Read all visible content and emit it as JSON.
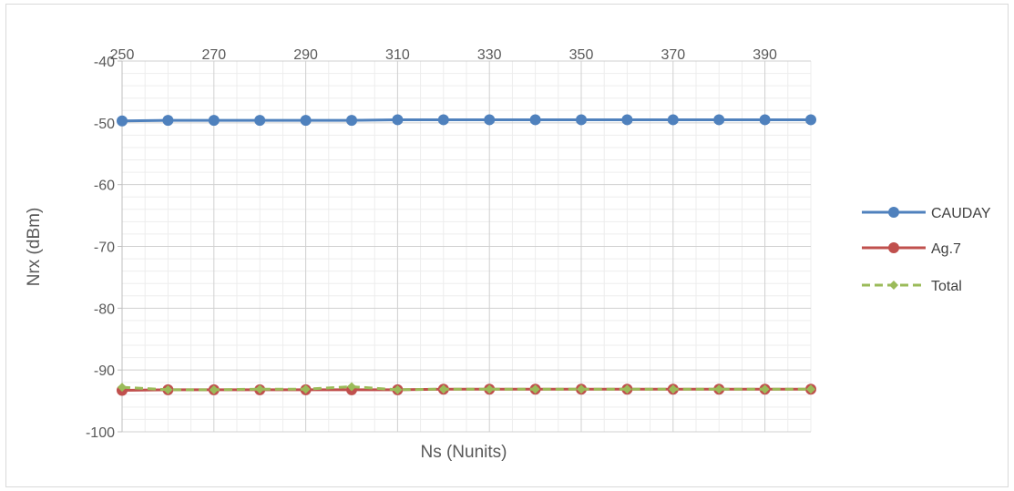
{
  "chart_data": {
    "type": "line",
    "title": "",
    "xlabel": "Ns (Nunits)",
    "ylabel": "Nrx (dBm)",
    "xlim": [
      250,
      400
    ],
    "ylim": [
      -100,
      -40
    ],
    "x_ticks": [
      250,
      270,
      290,
      310,
      330,
      350,
      370,
      390
    ],
    "y_ticks": [
      -40,
      -50,
      -60,
      -70,
      -80,
      -90,
      -100
    ],
    "grid": true,
    "legend_position": "right",
    "x": [
      250,
      260,
      270,
      280,
      290,
      300,
      310,
      320,
      330,
      340,
      350,
      360,
      370,
      380,
      390,
      400
    ],
    "series": [
      {
        "name": "CAUDAY",
        "color": "#4f81bd",
        "marker": "circle",
        "style": "solid",
        "values": [
          -49.7,
          -49.6,
          -49.6,
          -49.6,
          -49.6,
          -49.6,
          -49.5,
          -49.5,
          -49.5,
          -49.5,
          -49.5,
          -49.5,
          -49.5,
          -49.5,
          -49.5,
          -49.5
        ]
      },
      {
        "name": "Ag.7",
        "color": "#c0504d",
        "marker": "circle",
        "style": "solid",
        "values": [
          -93.3,
          -93.2,
          -93.2,
          -93.2,
          -93.2,
          -93.2,
          -93.2,
          -93.1,
          -93.1,
          -93.1,
          -93.1,
          -93.1,
          -93.1,
          -93.1,
          -93.1,
          -93.1
        ]
      },
      {
        "name": "Total",
        "color": "#9bbb59",
        "marker": "diamond",
        "style": "dashed",
        "values": [
          -92.8,
          -93.2,
          -93.2,
          -93.1,
          -93.1,
          -92.7,
          -93.2,
          -93.1,
          -93.1,
          -93.1,
          -93.1,
          -93.1,
          -93.1,
          -93.1,
          -93.1,
          -93.1
        ]
      }
    ]
  }
}
